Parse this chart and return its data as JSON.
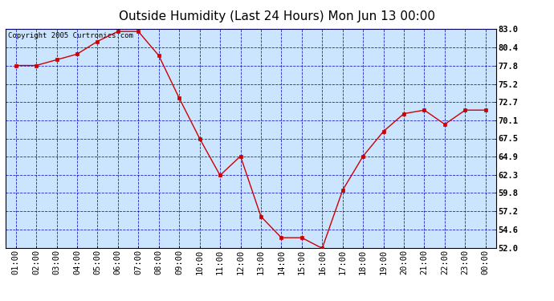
{
  "title": "Outside Humidity (Last 24 Hours) Mon Jun 13 00:00",
  "copyright": "Copyright 2005 Curtronics.com",
  "x_labels": [
    "01:00",
    "02:00",
    "03:00",
    "04:00",
    "05:00",
    "06:00",
    "07:00",
    "08:00",
    "09:00",
    "10:00",
    "11:00",
    "12:00",
    "13:00",
    "14:00",
    "15:00",
    "16:00",
    "17:00",
    "18:00",
    "19:00",
    "20:00",
    "21:00",
    "22:00",
    "23:00",
    "00:00"
  ],
  "y_values": [
    77.8,
    77.8,
    78.6,
    79.4,
    81.2,
    82.6,
    82.6,
    79.2,
    73.2,
    67.5,
    62.3,
    65.0,
    56.5,
    53.5,
    53.5,
    52.0,
    60.2,
    65.0,
    68.5,
    71.0,
    71.5,
    69.5,
    71.5,
    71.5
  ],
  "ylim_min": 52.0,
  "ylim_max": 83.0,
  "yticks": [
    52.0,
    54.6,
    57.2,
    59.8,
    62.3,
    64.9,
    67.5,
    70.1,
    72.7,
    75.2,
    77.8,
    80.4,
    83.0
  ],
  "line_color": "#cc0000",
  "marker_color": "#cc0000",
  "bg_color": "#cce5ff",
  "grid_color": "#0000bb",
  "title_fontsize": 11,
  "axis_label_fontsize": 7.5,
  "copyright_fontsize": 6.5
}
